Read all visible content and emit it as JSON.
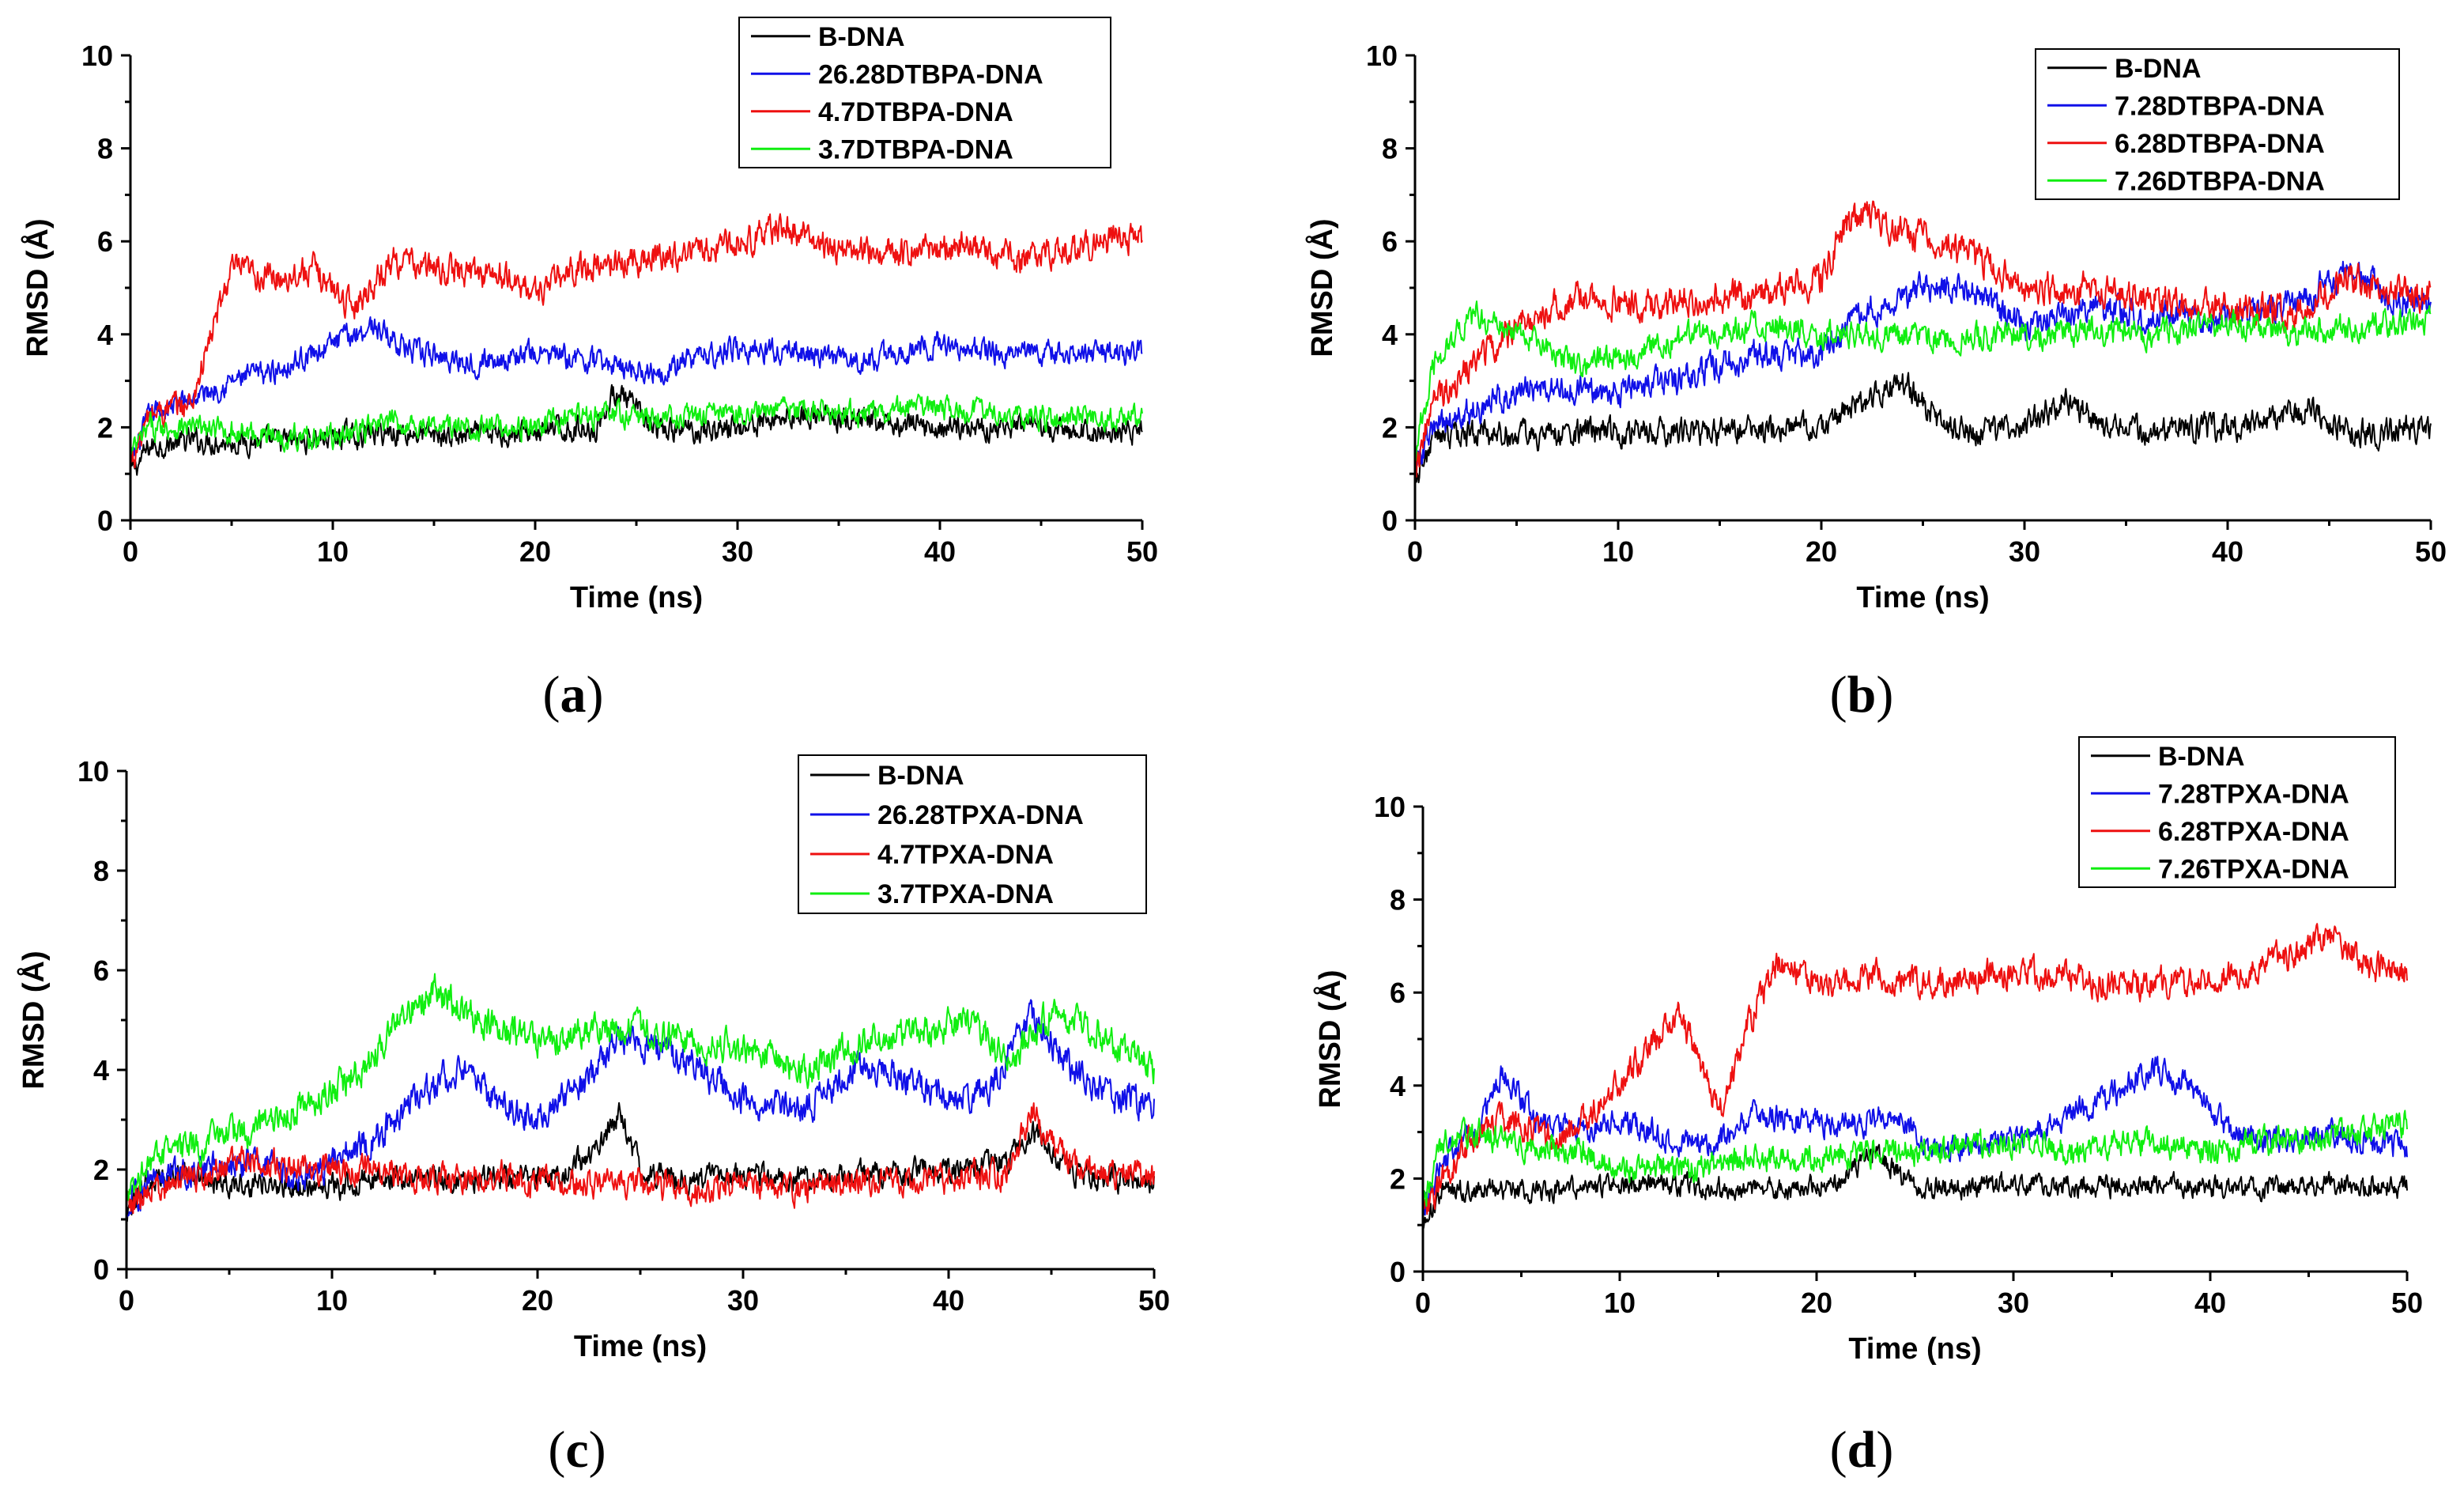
{
  "colors": {
    "black": "#000000",
    "blue": "#1010e8",
    "red": "#ee1010",
    "green": "#10ee10"
  },
  "chart_data": [
    {
      "type": "line",
      "label": "(a)",
      "xlabel": "Time (ns)",
      "ylabel": "RMSD (Å)",
      "xlim": [
        0,
        50
      ],
      "ylim": [
        0,
        10
      ],
      "xticks": [
        0,
        10,
        20,
        30,
        40,
        50
      ],
      "yticks": [
        0,
        2,
        4,
        6,
        8,
        10
      ],
      "grid": false,
      "legend_position": "top-right",
      "series": [
        {
          "name": "B-DNA",
          "color": "#000000",
          "noise": 0.45,
          "x": [
            0,
            1,
            3,
            5,
            8,
            10,
            13,
            16,
            20,
            23,
            24,
            26,
            30,
            33,
            36,
            40,
            43,
            46,
            50
          ],
          "y": [
            1.0,
            1.6,
            1.7,
            1.7,
            1.7,
            1.8,
            1.9,
            1.8,
            1.9,
            2.0,
            2.8,
            1.9,
            2.0,
            2.3,
            2.1,
            2.0,
            2.0,
            1.9,
            1.9
          ]
        },
        {
          "name": "26.28DTBPA-DNA",
          "color": "#1010e8",
          "noise": 0.45,
          "x": [
            0,
            1,
            3,
            5,
            7,
            9,
            11,
            12,
            14,
            17,
            20,
            23,
            26,
            28,
            30,
            33,
            36,
            40,
            43,
            46,
            50
          ],
          "y": [
            1.2,
            2.3,
            2.6,
            3.0,
            3.2,
            3.6,
            4.0,
            4.2,
            3.6,
            3.4,
            3.6,
            3.4,
            3.2,
            3.5,
            3.7,
            3.6,
            3.4,
            3.8,
            3.6,
            3.6,
            3.6
          ]
        },
        {
          "name": "4.7DTBPA-DNA",
          "color": "#ee1010",
          "noise": 0.55,
          "x": [
            0,
            1,
            3,
            4,
            5,
            7,
            9,
            10,
            11,
            13,
            15,
            18,
            20,
            22,
            25,
            28,
            31,
            32,
            35,
            38,
            41,
            44,
            47,
            50
          ],
          "y": [
            1.2,
            2.3,
            2.5,
            4.0,
            5.4,
            5.2,
            5.4,
            5.0,
            4.6,
            5.6,
            5.4,
            5.3,
            4.9,
            5.4,
            5.6,
            5.8,
            6.1,
            6.3,
            5.8,
            5.8,
            5.9,
            5.6,
            5.9,
            6.1
          ]
        },
        {
          "name": "3.7DTBPA-DNA",
          "color": "#10ee10",
          "noise": 0.45,
          "x": [
            0,
            1,
            3,
            5,
            8,
            10,
            13,
            16,
            20,
            23,
            26,
            30,
            33,
            36,
            40,
            43,
            46,
            50
          ],
          "y": [
            1.4,
            2.0,
            2.0,
            1.9,
            1.8,
            1.8,
            2.1,
            2.0,
            2.0,
            2.3,
            2.2,
            2.3,
            2.4,
            2.3,
            2.4,
            2.3,
            2.2,
            2.2
          ]
        }
      ]
    },
    {
      "type": "line",
      "label": "(b)",
      "xlabel": "Time (ns)",
      "ylabel": "RMSD (Å)",
      "xlim": [
        0,
        50
      ],
      "ylim": [
        0,
        10
      ],
      "xticks": [
        0,
        10,
        20,
        30,
        40,
        50
      ],
      "yticks": [
        0,
        2,
        4,
        6,
        8,
        10
      ],
      "grid": false,
      "legend_position": "top-right",
      "series": [
        {
          "name": "B-DNA",
          "color": "#000000",
          "noise": 0.5,
          "x": [
            0,
            1,
            3,
            6,
            9,
            12,
            16,
            20,
            22,
            24,
            26,
            28,
            30,
            32,
            34,
            37,
            40,
            44,
            46,
            50
          ],
          "y": [
            0.9,
            1.8,
            1.9,
            1.8,
            1.9,
            1.9,
            1.9,
            2.0,
            2.5,
            3.0,
            2.0,
            1.9,
            2.0,
            2.6,
            2.0,
            1.9,
            2.0,
            2.4,
            1.9,
            2.0
          ]
        },
        {
          "name": "7.28DTBPA-DNA",
          "color": "#1010e8",
          "noise": 0.55,
          "x": [
            0,
            1,
            3,
            5,
            8,
            11,
            14,
            17,
            20,
            22,
            25,
            27,
            30,
            33,
            36,
            40,
            43,
            46,
            48,
            50
          ],
          "y": [
            1.2,
            2.0,
            2.4,
            2.8,
            2.8,
            2.8,
            3.2,
            3.6,
            3.6,
            4.5,
            5.0,
            5.0,
            4.2,
            4.6,
            4.4,
            4.4,
            4.6,
            5.4,
            4.8,
            4.6
          ]
        },
        {
          "name": "6.28DTBPA-DNA",
          "color": "#ee1010",
          "noise": 0.6,
          "x": [
            0,
            1,
            3,
            5,
            8,
            11,
            14,
            17,
            20,
            21,
            22,
            24,
            27,
            30,
            33,
            36,
            40,
            43,
            46,
            50
          ],
          "y": [
            1.2,
            2.6,
            3.4,
            4.2,
            4.8,
            4.6,
            4.8,
            4.8,
            5.2,
            6.2,
            6.6,
            6.2,
            5.8,
            5.0,
            5.0,
            4.8,
            4.6,
            4.4,
            5.2,
            4.8
          ]
        },
        {
          "name": "7.26DTBPA-DNA",
          "color": "#10ee10",
          "noise": 0.5,
          "x": [
            0,
            1,
            2,
            3,
            5,
            8,
            11,
            14,
            17,
            20,
            23,
            26,
            30,
            33,
            36,
            40,
            43,
            46,
            50
          ],
          "y": [
            1.5,
            3.4,
            4.0,
            4.4,
            4.0,
            3.4,
            3.6,
            4.0,
            4.2,
            4.0,
            4.0,
            3.9,
            4.0,
            4.1,
            4.0,
            4.2,
            4.0,
            4.2,
            4.3
          ]
        }
      ]
    },
    {
      "type": "line",
      "label": "(c)",
      "xlabel": "Time (ns)",
      "ylabel": "RMSD (Å)",
      "xlim": [
        0,
        50
      ],
      "ylim": [
        0,
        10
      ],
      "xticks": [
        0,
        10,
        20,
        30,
        40,
        50
      ],
      "yticks": [
        0,
        2,
        4,
        6,
        8,
        10
      ],
      "grid": false,
      "legend_position": "top-right",
      "series": [
        {
          "name": "B-DNA",
          "color": "#000000",
          "noise": 0.45,
          "x": [
            0,
            1,
            3,
            6,
            9,
            12,
            15,
            18,
            21,
            23,
            24,
            25,
            27,
            30,
            33,
            36,
            40,
            43,
            44,
            46,
            50
          ],
          "y": [
            1.0,
            1.8,
            1.9,
            1.7,
            1.6,
            1.8,
            1.8,
            1.8,
            1.8,
            2.5,
            3.2,
            2.0,
            1.8,
            1.9,
            1.8,
            1.9,
            2.0,
            2.2,
            2.8,
            1.9,
            1.8
          ]
        },
        {
          "name": "26.28TPXA-DNA",
          "color": "#1010e8",
          "noise": 0.55,
          "x": [
            0,
            1,
            3,
            6,
            9,
            12,
            14,
            16,
            18,
            20,
            22,
            24,
            26,
            28,
            30,
            33,
            36,
            38,
            40,
            42,
            44,
            46,
            48,
            50
          ],
          "y": [
            1.2,
            1.8,
            2.0,
            2.1,
            1.9,
            2.6,
            3.4,
            4.0,
            3.4,
            3.0,
            3.6,
            4.6,
            4.4,
            4.0,
            3.4,
            3.2,
            4.2,
            3.8,
            3.4,
            3.6,
            5.2,
            4.0,
            3.4,
            3.4
          ]
        },
        {
          "name": "4.7TPXA-DNA",
          "color": "#ee1010",
          "noise": 0.5,
          "x": [
            0,
            1,
            3,
            6,
            9,
            12,
            15,
            18,
            21,
            24,
            27,
            30,
            33,
            36,
            40,
            43,
            44,
            46,
            50
          ],
          "y": [
            1.2,
            1.6,
            1.8,
            2.2,
            2.0,
            2.0,
            1.8,
            1.9,
            1.7,
            1.8,
            1.6,
            1.7,
            1.6,
            1.8,
            1.8,
            1.9,
            3.2,
            2.0,
            1.9
          ]
        },
        {
          "name": "3.7TPXA-DNA",
          "color": "#10ee10",
          "noise": 0.55,
          "x": [
            0,
            1,
            3,
            6,
            8,
            10,
            12,
            13,
            15,
            17,
            20,
            23,
            25,
            27,
            30,
            33,
            36,
            39,
            41,
            43,
            45,
            47,
            50
          ],
          "y": [
            1.4,
            2.2,
            2.4,
            2.8,
            3.2,
            3.6,
            4.2,
            5.0,
            5.6,
            5.0,
            4.6,
            4.8,
            4.8,
            4.6,
            4.4,
            4.0,
            4.6,
            4.8,
            5.0,
            4.2,
            5.2,
            4.8,
            4.0
          ]
        }
      ]
    },
    {
      "type": "line",
      "label": "(d)",
      "xlabel": "Time (ns)",
      "ylabel": "RMSD (Å)",
      "xlim": [
        0,
        50
      ],
      "ylim": [
        0,
        10
      ],
      "xticks": [
        0,
        10,
        20,
        30,
        40,
        50
      ],
      "yticks": [
        0,
        2,
        4,
        6,
        8,
        10
      ],
      "grid": false,
      "legend_position": "top-right",
      "series": [
        {
          "name": "B-DNA",
          "color": "#000000",
          "noise": 0.4,
          "x": [
            0,
            1,
            3,
            6,
            9,
            12,
            15,
            18,
            21,
            23,
            25,
            28,
            31,
            34,
            37,
            40,
            43,
            46,
            50
          ],
          "y": [
            1.0,
            1.7,
            1.8,
            1.7,
            1.8,
            1.9,
            1.8,
            1.8,
            1.9,
            2.6,
            1.8,
            1.8,
            1.9,
            1.8,
            1.9,
            1.8,
            1.8,
            1.9,
            1.8
          ]
        },
        {
          "name": "7.28TPXA-DNA",
          "color": "#1010e8",
          "noise": 0.5,
          "x": [
            0,
            1,
            3,
            4,
            6,
            8,
            10,
            13,
            15,
            17,
            20,
            22,
            24,
            26,
            28,
            30,
            33,
            35,
            37,
            39,
            41,
            43,
            46,
            50
          ],
          "y": [
            1.2,
            2.4,
            3.2,
            4.2,
            3.2,
            3.0,
            3.2,
            2.8,
            2.8,
            3.4,
            3.2,
            3.2,
            3.4,
            2.6,
            2.8,
            2.8,
            3.4,
            3.8,
            4.4,
            4.0,
            3.0,
            2.8,
            3.0,
            2.6
          ]
        },
        {
          "name": "6.28TPXA-DNA",
          "color": "#ee1010",
          "noise": 0.55,
          "x": [
            0,
            1,
            3,
            5,
            7,
            9,
            11,
            13,
            14,
            15,
            16,
            17,
            18,
            20,
            23,
            26,
            29,
            32,
            35,
            38,
            41,
            44,
            46,
            48,
            50
          ],
          "y": [
            1.2,
            2.0,
            3.2,
            3.2,
            2.8,
            3.6,
            4.6,
            5.6,
            4.6,
            3.4,
            4.6,
            5.8,
            6.6,
            6.2,
            6.4,
            6.2,
            6.4,
            6.4,
            6.2,
            6.2,
            6.4,
            6.8,
            7.2,
            6.6,
            6.4
          ]
        },
        {
          "name": "7.26TPXA-DNA",
          "color": "#10ee10",
          "noise": 0.5,
          "x": [
            0,
            1,
            3,
            5,
            8,
            10,
            13,
            16,
            20,
            23,
            26,
            30,
            33,
            36,
            40,
            43,
            46,
            50
          ],
          "y": [
            1.4,
            2.8,
            3.0,
            2.6,
            2.6,
            2.2,
            2.2,
            2.4,
            2.4,
            2.6,
            2.6,
            2.8,
            2.6,
            2.8,
            2.6,
            2.8,
            2.9,
            3.2
          ]
        }
      ]
    }
  ]
}
